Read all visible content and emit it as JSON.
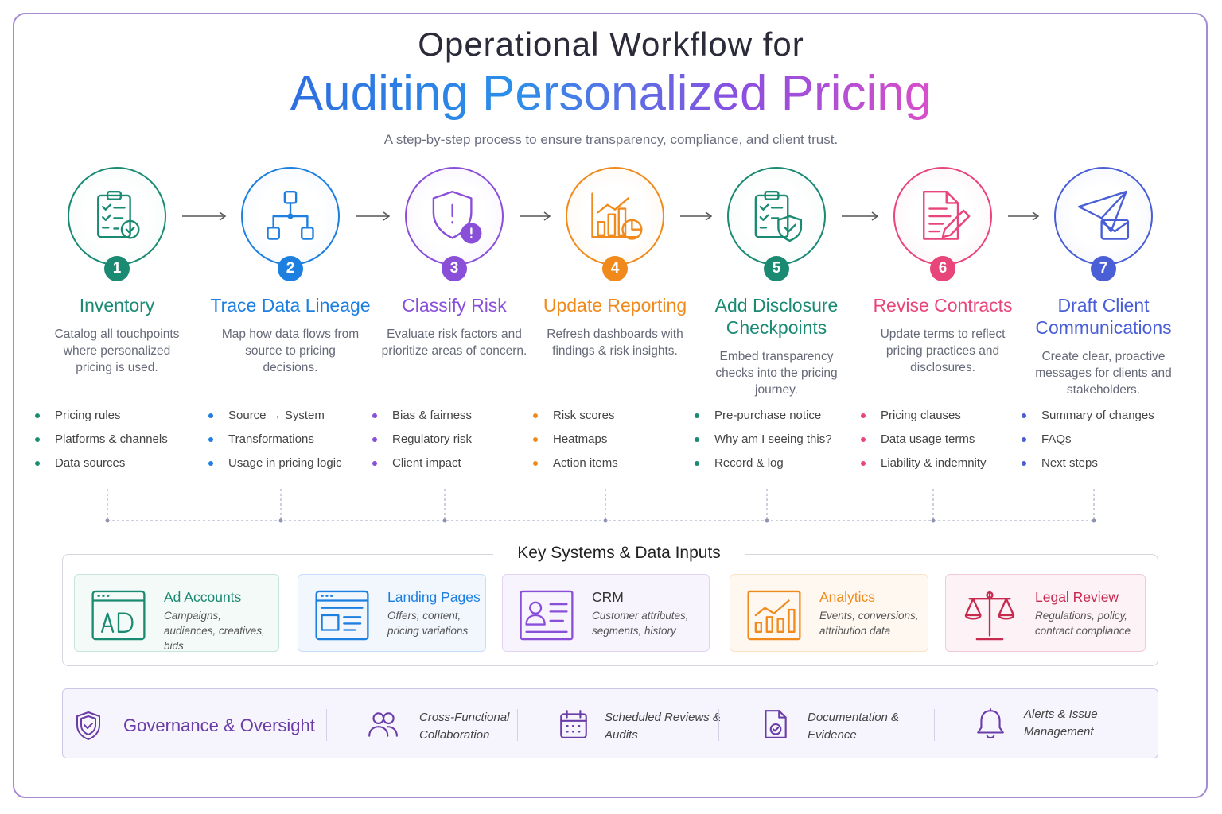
{
  "header": {
    "title_line1": "Operational Workflow for",
    "title_line2": "Auditing Personalized Pricing",
    "subtitle": "A step-by-step process to ensure transparency, compliance, and client trust."
  },
  "steps": [
    {
      "number": 1,
      "title": "Inventory",
      "description": "Catalog all touchpoints where personalized pricing is used.",
      "items": [
        "Pricing rules",
        "Platforms & channels",
        "Data sources"
      ]
    },
    {
      "number": 2,
      "title": "Trace Data Lineage",
      "description": "Map how data flows from source to pricing decisions.",
      "items": [
        "Source → System",
        "Transformations",
        "Usage in pricing logic"
      ]
    },
    {
      "number": 3,
      "title": "Classify Risk",
      "description": "Evaluate risk factors and prioritize areas of concern.",
      "items": [
        "Bias & fairness",
        "Regulatory risk",
        "Client impact"
      ]
    },
    {
      "number": 4,
      "title": "Update Reporting",
      "description": "Refresh dashboards with findings & risk insights.",
      "items": [
        "Risk scores",
        "Heatmaps",
        "Action items"
      ]
    },
    {
      "number": 5,
      "title": "Add Disclosure Checkpoints",
      "description": "Embed transparency checks into the pricing journey.",
      "items": [
        "Pre-purchase notice",
        "Why am I seeing this?",
        "Record & log"
      ]
    },
    {
      "number": 6,
      "title": "Revise Contracts",
      "description": "Update terms to reflect pricing practices and disclosures.",
      "items": [
        "Pricing clauses",
        "Data usage terms",
        "Liability & indemnity"
      ]
    },
    {
      "number": 7,
      "title": "Draft Client Communications",
      "description": "Create clear, proactive messages for clients and stakeholders.",
      "items": [
        "Summary of changes",
        "FAQs",
        "Next steps"
      ]
    }
  ],
  "systems": {
    "title": "Key Systems & Data Inputs",
    "cards": [
      {
        "name": "Ad Accounts",
        "details": "Campaigns, audiences, creatives, bids"
      },
      {
        "name": "Landing Pages",
        "details": "Offers, content, pricing variations"
      },
      {
        "name": "CRM",
        "details": "Customer attributes, segments, history"
      },
      {
        "name": "Analytics",
        "details": "Events, conversions, attribution data"
      },
      {
        "name": "Legal Review",
        "details": "Regulations, policy, contract compliance"
      }
    ]
  },
  "governance": {
    "title": "Governance & Oversight",
    "items": [
      "Cross-Functional Collaboration",
      "Scheduled Reviews & Audits",
      "Documentation & Evidence",
      "Alerts & Issue Management"
    ]
  }
}
